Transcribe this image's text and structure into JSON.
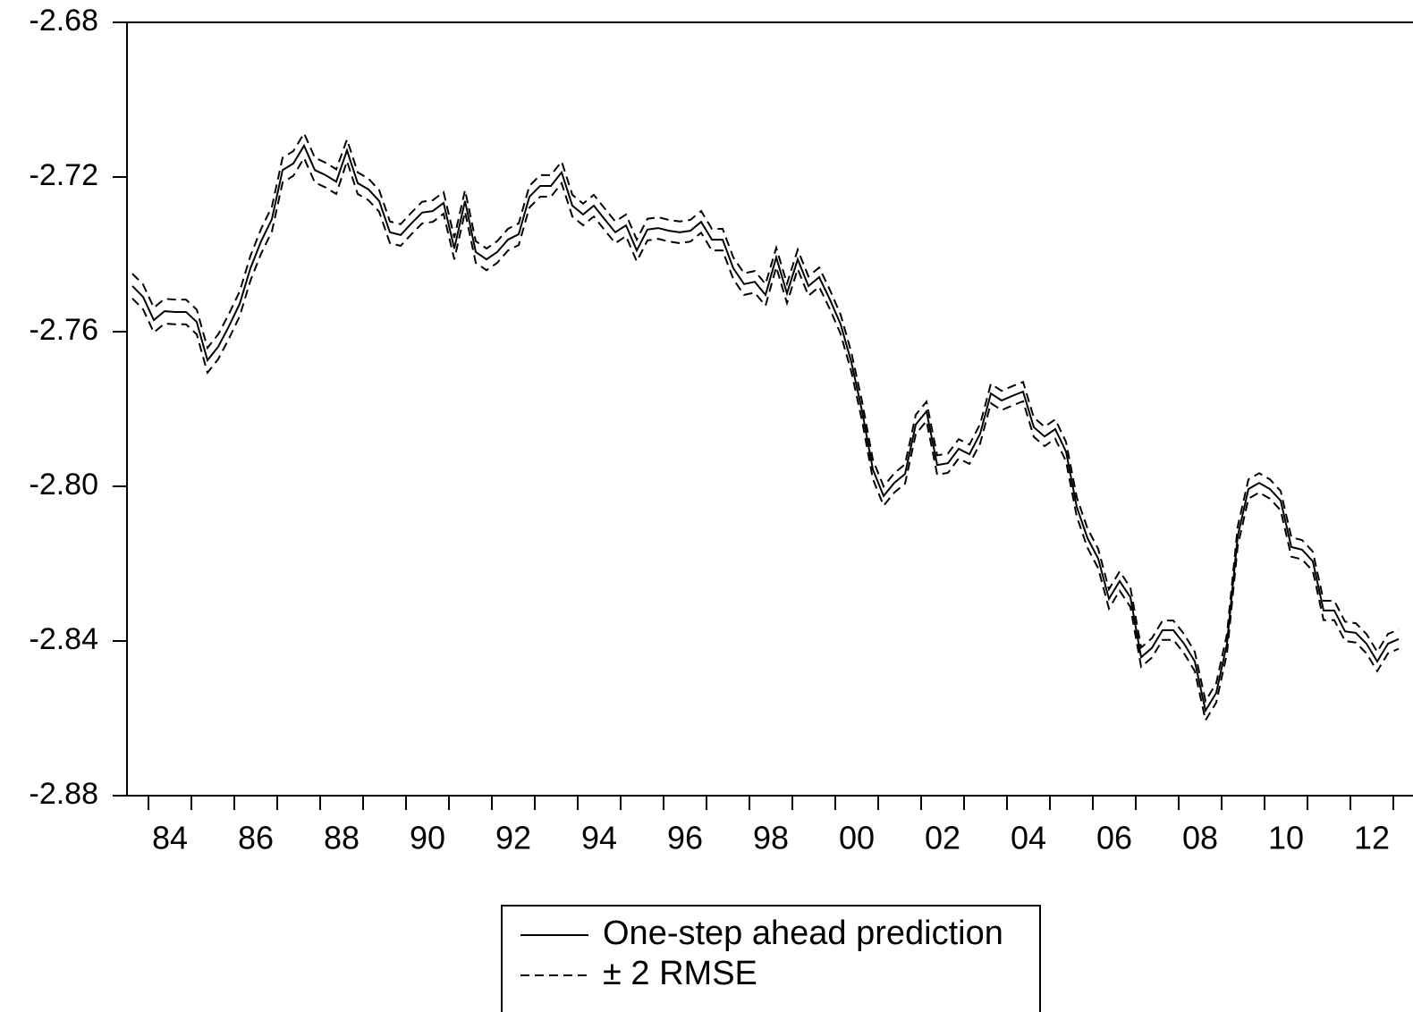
{
  "chart_data": {
    "type": "line",
    "xlim": [
      1983.5,
      2013.25
    ],
    "xticks": [
      {
        "value": 1984.5,
        "label": "84"
      },
      {
        "value": 1986.5,
        "label": "86"
      },
      {
        "value": 1988.5,
        "label": "88"
      },
      {
        "value": 1990.5,
        "label": "90"
      },
      {
        "value": 1992.5,
        "label": "92"
      },
      {
        "value": 1994.5,
        "label": "94"
      },
      {
        "value": 1996.5,
        "label": "96"
      },
      {
        "value": 1998.5,
        "label": "98"
      },
      {
        "value": 2000.5,
        "label": "00"
      },
      {
        "value": 2002.5,
        "label": "02"
      },
      {
        "value": 2004.5,
        "label": "04"
      },
      {
        "value": 2006.5,
        "label": "06"
      },
      {
        "value": 2008.5,
        "label": "08"
      },
      {
        "value": 2010.5,
        "label": "10"
      },
      {
        "value": 2012.5,
        "label": "12"
      }
    ],
    "ylim": [
      -2.88,
      -2.68
    ],
    "yticks": [
      -2.88,
      -2.84,
      {
        "value": -2.8,
        "label": "-2.80"
      },
      -2.76,
      -2.72,
      -2.68
    ],
    "grid": false,
    "legend": "bottom",
    "x": [
      1983.625,
      1983.875,
      1984.125,
      1984.375,
      1984.625,
      1984.875,
      1985.125,
      1985.375,
      1985.625,
      1985.875,
      1986.125,
      1986.375,
      1986.625,
      1986.875,
      1987.125,
      1987.375,
      1987.625,
      1987.875,
      1988.125,
      1988.375,
      1988.625,
      1988.875,
      1989.125,
      1989.375,
      1989.625,
      1989.875,
      1990.125,
      1990.375,
      1990.625,
      1990.875,
      1991.125,
      1991.375,
      1991.625,
      1991.875,
      1992.125,
      1992.375,
      1992.625,
      1992.875,
      1993.125,
      1993.375,
      1993.625,
      1993.875,
      1994.125,
      1994.375,
      1994.625,
      1994.875,
      1995.125,
      1995.375,
      1995.625,
      1995.875,
      1996.125,
      1996.375,
      1996.625,
      1996.875,
      1997.125,
      1997.375,
      1997.625,
      1997.875,
      1998.125,
      1998.375,
      1998.625,
      1998.875,
      1999.125,
      1999.375,
      1999.625,
      1999.875,
      2000.125,
      2000.375,
      2000.625,
      2000.875,
      2001.125,
      2001.375,
      2001.625,
      2001.875,
      2002.125,
      2002.375,
      2002.625,
      2002.875,
      2003.125,
      2003.375,
      2003.625,
      2003.875,
      2004.125,
      2004.375,
      2004.625,
      2004.875,
      2005.125,
      2005.375,
      2005.625,
      2005.875,
      2006.125,
      2006.375,
      2006.625,
      2006.875,
      2007.125,
      2007.375,
      2007.625,
      2007.875,
      2008.125,
      2008.375,
      2008.625,
      2008.875,
      2009.125,
      2009.375,
      2009.625,
      2009.875,
      2010.125,
      2010.375,
      2010.625,
      2010.875,
      2011.125,
      2011.375,
      2011.625,
      2011.875,
      2012.125,
      2012.375,
      2012.625,
      2012.875,
      2013.125
    ],
    "series": [
      {
        "name": "One-step ahead prediction",
        "color": "#000000",
        "style": "solid",
        "values": [
          -2.7482,
          -2.751,
          -2.757,
          -2.7547,
          -2.7549,
          -2.7549,
          -2.7575,
          -2.7674,
          -2.7639,
          -2.7586,
          -2.7528,
          -2.7436,
          -2.7366,
          -2.7309,
          -2.7182,
          -2.7165,
          -2.7119,
          -2.7182,
          -2.7195,
          -2.7212,
          -2.7131,
          -2.7216,
          -2.7232,
          -2.7262,
          -2.7343,
          -2.735,
          -2.732,
          -2.7292,
          -2.7288,
          -2.7267,
          -2.7385,
          -2.7262,
          -2.7394,
          -2.7413,
          -2.7394,
          -2.7362,
          -2.7348,
          -2.7251,
          -2.7223,
          -2.7223,
          -2.7188,
          -2.7274,
          -2.7297,
          -2.7274,
          -2.7309,
          -2.7343,
          -2.7325,
          -2.739,
          -2.7336,
          -2.7332,
          -2.7339,
          -2.7343,
          -2.7339,
          -2.7316,
          -2.7362,
          -2.7362,
          -2.7436,
          -2.7477,
          -2.7471,
          -2.7505,
          -2.7408,
          -2.7501,
          -2.7413,
          -2.7482,
          -2.7459,
          -2.7517,
          -2.7581,
          -2.7679,
          -2.7806,
          -2.7956,
          -2.8025,
          -2.7991,
          -2.7968,
          -2.784,
          -2.7806,
          -2.7945,
          -2.794,
          -2.7903,
          -2.7917,
          -2.7864,
          -2.776,
          -2.7778,
          -2.7766,
          -2.7755,
          -2.7847,
          -2.7871,
          -2.7852,
          -2.791,
          -2.8053,
          -2.8134,
          -2.8187,
          -2.8291,
          -2.8245,
          -2.8287,
          -2.8442,
          -2.8418,
          -2.8372,
          -2.8372,
          -2.8407,
          -2.8453,
          -2.858,
          -2.8534,
          -2.8407,
          -2.8129,
          -2.8007,
          -2.7991,
          -2.8007,
          -2.8037,
          -2.8157,
          -2.8164,
          -2.8194,
          -2.8321,
          -2.8321,
          -2.8375,
          -2.8379,
          -2.8407,
          -2.8453,
          -2.8407,
          -2.8395
        ]
      },
      {
        "name": "± 2 RMSE",
        "color": "#000000",
        "style": "dashed",
        "kind": "band",
        "values": [
          0.0032,
          0.0032,
          0.0032,
          0.0032,
          0.0032,
          0.0032,
          0.0032,
          0.0032,
          0.0032,
          0.0032,
          0.0032,
          0.0032,
          0.0032,
          0.0032,
          0.0032,
          0.0032,
          0.0032,
          0.0032,
          0.0032,
          0.0032,
          0.0028,
          0.0028,
          0.0028,
          0.0028,
          0.0028,
          0.0028,
          0.0028,
          0.0028,
          0.0028,
          0.0028,
          0.0028,
          0.0028,
          0.0028,
          0.0028,
          0.0028,
          0.0028,
          0.0028,
          0.0028,
          0.0028,
          0.0028,
          0.0028,
          0.0028,
          0.0028,
          0.0028,
          0.0028,
          0.0028,
          0.0028,
          0.0028,
          0.0028,
          0.0028,
          0.0028,
          0.0028,
          0.0028,
          0.0028,
          0.0028,
          0.0028,
          0.0028,
          0.0028,
          0.0028,
          0.0028,
          0.0025,
          0.0025,
          0.0025,
          0.0025,
          0.0025,
          0.0025,
          0.0025,
          0.0025,
          0.0025,
          0.0025,
          0.0025,
          0.0025,
          0.0025,
          0.0025,
          0.0025,
          0.0025,
          0.0025,
          0.0025,
          0.0025,
          0.0025,
          0.0025,
          0.0025,
          0.0025,
          0.0025,
          0.0025,
          0.0025,
          0.0025,
          0.0025,
          0.0025,
          0.0025,
          0.0025,
          0.0025,
          0.0025,
          0.0025,
          0.0025,
          0.0025,
          0.0025,
          0.0025,
          0.0025,
          0.0025,
          0.0025,
          0.0025,
          0.0025,
          0.0025,
          0.0025,
          0.0025,
          0.0025,
          0.0025,
          0.0025,
          0.0025,
          0.0025,
          0.0025,
          0.0025,
          0.0025,
          0.0025,
          0.0025,
          0.0025,
          0.0025,
          0.0025
        ]
      }
    ]
  }
}
